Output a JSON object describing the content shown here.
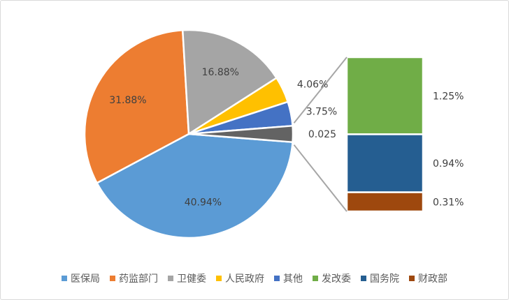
{
  "chart_data": {
    "type": "pie",
    "subtype": "bar-of-pie",
    "series": [
      {
        "name": "医保局",
        "label": "40.94%",
        "value": 40.94,
        "color": "#5b9bd5"
      },
      {
        "name": "药监部门",
        "label": "31.88%",
        "value": 31.88,
        "color": "#ed7d31"
      },
      {
        "name": "卫健委",
        "label": "16.88%",
        "value": 16.88,
        "color": "#a5a5a5"
      },
      {
        "name": "人民政府",
        "label": "4.06%",
        "value": 4.06,
        "color": "#ffc000"
      },
      {
        "name": "其他",
        "label": "3.75%",
        "value": 3.75,
        "color": "#4472c4"
      },
      {
        "name": "发改委",
        "label": "1.25%",
        "value": 1.25,
        "color": "#70ad47"
      },
      {
        "name": "国务院",
        "label": "0.94%",
        "value": 0.94,
        "color": "#255e91"
      },
      {
        "name": "财政部",
        "label": "0.31%",
        "value": 0.31,
        "color": "#9e480e"
      }
    ],
    "pie_members": [
      "医保局",
      "药监部门",
      "卫健委",
      "人民政府",
      "其他"
    ],
    "secondary_members": [
      "发改委",
      "国务院",
      "财政部"
    ],
    "other_slice": {
      "label": "0.025",
      "value": 2.5,
      "color": "#636363"
    },
    "legend_position": "bottom"
  }
}
